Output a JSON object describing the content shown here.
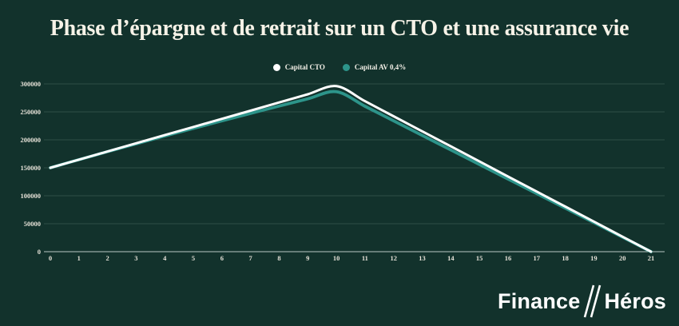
{
  "title": "Phase d’épargne et de retrait sur un CTO et une assurance vie",
  "legend": [
    {
      "label": "Capital CTO",
      "color": "#ffffff"
    },
    {
      "label": "Capital AV 0,4%",
      "color": "#2d948a"
    }
  ],
  "logo": {
    "part1": "Finance",
    "part2": "Héros",
    "slashes_icon": "double-slash"
  },
  "colors": {
    "background": "#12322c",
    "gridline": "#2e4d46",
    "axis_line": "#b9c8c4",
    "tick_label": "#e6e2d8",
    "title_text": "#f6f2e7",
    "series_cto": "#ffffff",
    "series_av": "#2d948a"
  },
  "chart_data": {
    "type": "line",
    "title": "Phase d’épargne et de retrait sur un CTO et une assurance vie",
    "xlabel": "",
    "ylabel": "",
    "x": [
      0,
      1,
      2,
      3,
      4,
      5,
      6,
      7,
      8,
      9,
      10,
      11,
      12,
      13,
      14,
      15,
      16,
      17,
      18,
      19,
      20,
      21
    ],
    "series": [
      {
        "name": "Capital CTO",
        "color": "#ffffff",
        "values": [
          150000,
          164600,
          179200,
          193800,
          208400,
          223000,
          237600,
          252200,
          266800,
          281400,
          296000,
          269100,
          242200,
          215300,
          188400,
          161500,
          134500,
          107600,
          80700,
          53800,
          26900,
          0
        ]
      },
      {
        "name": "Capital AV 0,4%",
        "color": "#2d948a",
        "values": [
          150000,
          164500,
          178800,
          192900,
          206800,
          220500,
          234000,
          247300,
          260400,
          273300,
          286000,
          260000,
          234000,
          208000,
          182000,
          156000,
          130000,
          104000,
          78000,
          52000,
          26000,
          0
        ]
      }
    ],
    "ylim": [
      0,
      300000
    ],
    "xlim": [
      0,
      21
    ],
    "y_ticks": [
      0,
      50000,
      100000,
      150000,
      200000,
      250000,
      300000
    ],
    "grid": true,
    "legend_position": "top"
  }
}
